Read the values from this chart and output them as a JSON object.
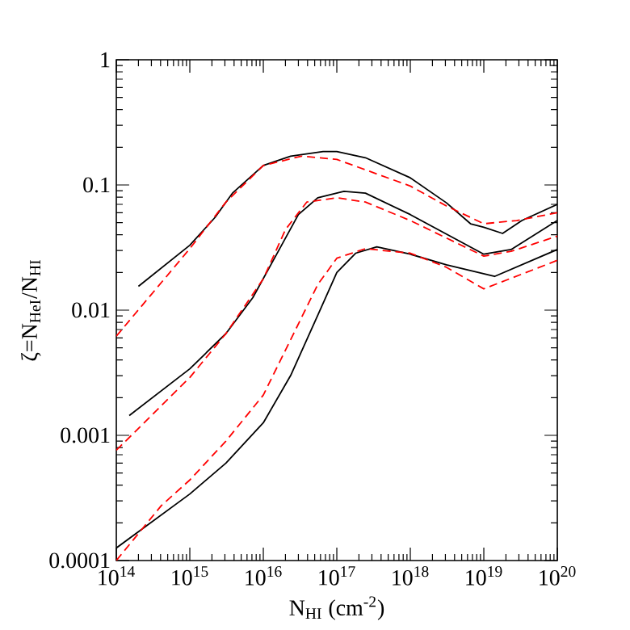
{
  "chart_data": {
    "type": "line",
    "xlabel": "N$_{HI}$ (cm$^{-2}$)",
    "ylabel": "ζ=N$_{HeI}$/N$_{HI}$",
    "log": "xy",
    "marker": "none",
    "grid": false,
    "xlim": [
      100000000000000.0,
      1e+20
    ],
    "ylim": [
      0.0001,
      1
    ],
    "xticks": [
      {
        "value": 100000000000000.0,
        "label": "10$^{14}$"
      },
      {
        "value": 1000000000000000.0,
        "label": "10$^{15}$"
      },
      {
        "value": 1e+16,
        "label": "10$^{16}$"
      },
      {
        "value": 1e+17,
        "label": "10$^{17}$"
      },
      {
        "value": 1e+18,
        "label": "10$^{18}$"
      },
      {
        "value": 1e+19,
        "label": "10$^{19}$"
      },
      {
        "value": 1e+20,
        "label": "10$^{20}$"
      }
    ],
    "yticks": [
      0.0001,
      0.001,
      0.01,
      0.1,
      1
    ],
    "series": [
      {
        "color": "#000000",
        "line_style": "solid",
        "x": [
          200000000000000.0,
          1000000000000000.0,
          2200000000000000.0,
          3800000000000000.0,
          1e+16,
          2.35e+16,
          6.5e+16,
          1e+17,
          2.45e+17,
          1e+18,
          3.1e+18,
          6.6e+18,
          1e+19,
          1.8e+19,
          3.3e+19,
          1e+20
        ],
        "values": [
          0.0155,
          0.033,
          0.055,
          0.086,
          0.143,
          0.17,
          0.185,
          0.185,
          0.165,
          0.114,
          0.072,
          0.049,
          0.046,
          0.041,
          0.052,
          0.07
        ]
      },
      {
        "color": "#ff0000",
        "line_style": "dashed",
        "x": [
          100000000000000.0,
          1000000000000000.0,
          3100000000000000.0,
          1e+16,
          3.3e+16,
          1e+17,
          1e+18,
          3.1e+18,
          1e+19,
          2.8e+19,
          1e+20
        ],
        "values": [
          0.0062,
          0.031,
          0.073,
          0.143,
          0.17,
          0.16,
          0.098,
          0.068,
          0.049,
          0.052,
          0.06
        ]
      },
      {
        "color": "#000000",
        "line_style": "solid",
        "x": [
          150000000000000.0,
          1000000000000000.0,
          3100000000000000.0,
          7200000000000000.0,
          1.67e+16,
          3e+16,
          5.5e+16,
          1.25e+17,
          2.45e+17,
          1e+18,
          1e+19,
          2.35e+19,
          1e+20
        ],
        "values": [
          0.00144,
          0.0034,
          0.0065,
          0.0126,
          0.031,
          0.058,
          0.079,
          0.089,
          0.086,
          0.058,
          0.028,
          0.0305,
          0.052
        ]
      },
      {
        "color": "#ff0000",
        "line_style": "dashed",
        "x": [
          100000000000000.0,
          1000000000000000.0,
          3100000000000000.0,
          1e+16,
          2e+16,
          3.9e+16,
          1e+17,
          2.45e+17,
          1e+18,
          1e+19,
          2.35e+19,
          1e+20
        ],
        "values": [
          0.00076,
          0.0029,
          0.0065,
          0.0178,
          0.044,
          0.073,
          0.079,
          0.073,
          0.052,
          0.027,
          0.0295,
          0.039
        ]
      },
      {
        "color": "#000000",
        "line_style": "solid",
        "x": [
          100000000000000.0,
          1000000000000000.0,
          3100000000000000.0,
          1e+16,
          2.35e+16,
          5.5e+16,
          1e+17,
          1.8e+17,
          3.5e+17,
          1e+18,
          3.1e+18,
          1.4e+19,
          1e+20
        ],
        "values": [
          0.000126,
          0.00034,
          0.0006,
          0.00126,
          0.003,
          0.0091,
          0.02,
          0.0285,
          0.032,
          0.028,
          0.023,
          0.0186,
          0.0305
        ]
      },
      {
        "color": "#ff0000",
        "line_style": "dashed",
        "x": [
          100000000000000.0,
          410000000000000.0,
          1000000000000000.0,
          3100000000000000.0,
          1e+16,
          2.35e+16,
          5.5e+16,
          1e+17,
          2.45e+17,
          1e+18,
          3.1e+18,
          1e+19,
          1e+20
        ],
        "values": [
          0.0001,
          0.000275,
          0.00044,
          0.0009,
          0.0021,
          0.0058,
          0.016,
          0.026,
          0.031,
          0.0285,
          0.022,
          0.0148,
          0.025
        ]
      }
    ]
  }
}
